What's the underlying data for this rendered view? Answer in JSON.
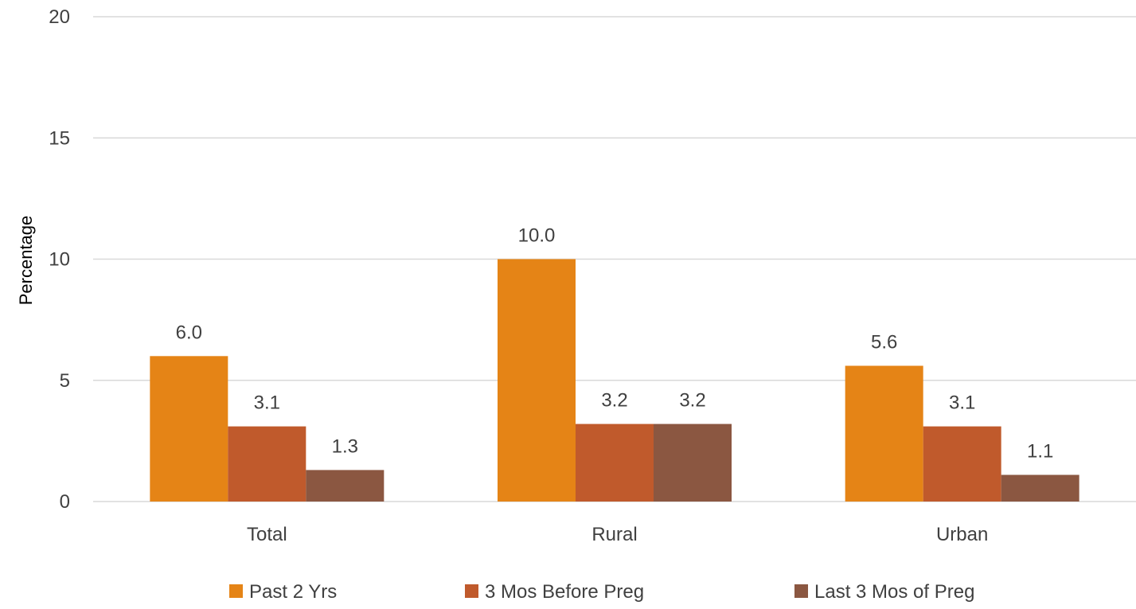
{
  "chart_data": {
    "type": "bar",
    "categories": [
      "Total",
      "Rural",
      "Urban"
    ],
    "series": [
      {
        "name": "Past 2 Yrs",
        "values": [
          6.0,
          10.0,
          5.6
        ],
        "color": "#E58416"
      },
      {
        "name": "3 Mos Before Preg",
        "values": [
          3.1,
          3.2,
          3.1
        ],
        "color": "#C05A2C"
      },
      {
        "name": "Last 3 Mos of Preg",
        "values": [
          1.3,
          3.2,
          1.1
        ],
        "color": "#8B5741"
      }
    ],
    "title": "",
    "xlabel": "",
    "ylabel": "Percentage",
    "ylim": [
      0,
      20
    ],
    "yticks": [
      0,
      5,
      10,
      15,
      20
    ],
    "value_format_decimals": 1,
    "grid": true,
    "legend_position": "bottom"
  }
}
